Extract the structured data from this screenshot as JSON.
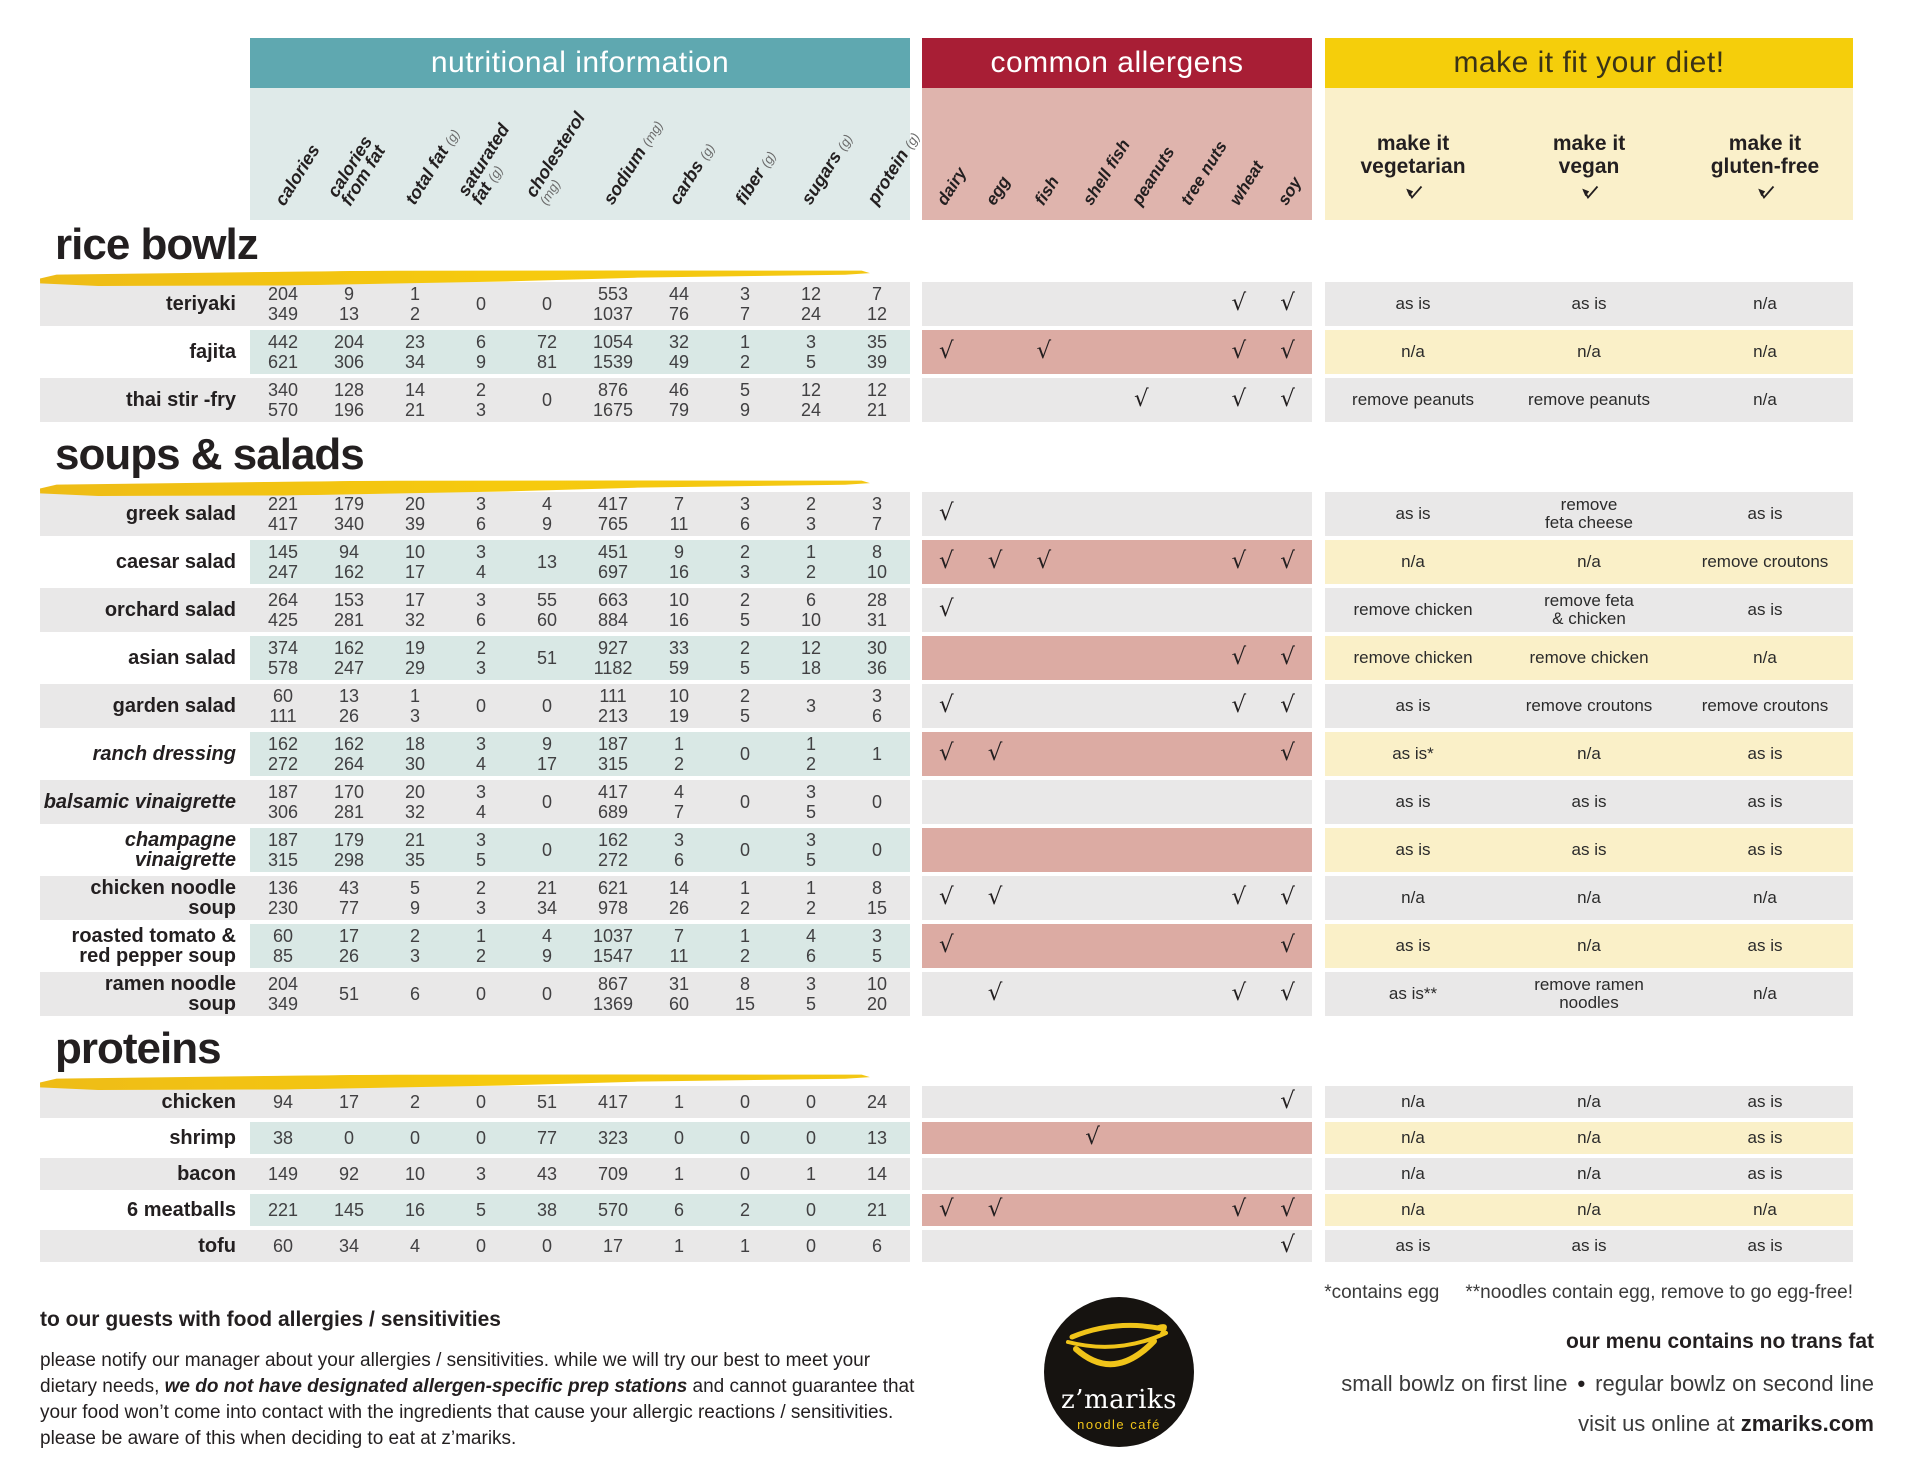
{
  "colors": {
    "teal": "#5fa8b0",
    "crimson": "#a81e35",
    "gold": "#f5ce0b",
    "bandTeal": "#dfeae9",
    "bandPink": "#dfb4ad",
    "bandYellow": "#faf0ca",
    "rowGray": "#e9e8e8",
    "rowTeal": "#d9e8e5",
    "rowPink": "#dcaba3",
    "rowYellow": "#faf0c8"
  },
  "header": {
    "nutrition_title": "nutritional information",
    "allergens_title": "common allergens",
    "diet_title": "make it fit your diet!"
  },
  "columns": {
    "nutrition": [
      {
        "text": "calories",
        "unit": ""
      },
      {
        "text": "calories\nfrom fat",
        "unit": ""
      },
      {
        "text": "total fat",
        "unit": "(g)"
      },
      {
        "text": "saturated\nfat",
        "unit": "(g)"
      },
      {
        "text": "cholesterol",
        "unit": "(mg)",
        "unit_below": true
      },
      {
        "text": "sodium",
        "unit": "(mg)"
      },
      {
        "text": "carbs",
        "unit": "(g)"
      },
      {
        "text": "fiber",
        "unit": "(g)"
      },
      {
        "text": "sugars",
        "unit": "(g)"
      },
      {
        "text": "protein",
        "unit": "(g)"
      }
    ],
    "allergens": [
      "dairy",
      "egg",
      "fish",
      "shell fish",
      "peanuts",
      "tree nuts",
      "wheat",
      "soy"
    ],
    "diet": [
      "make it\nvegetarian",
      "make it\nvegan",
      "make it\ngluten-free"
    ]
  },
  "sections": [
    {
      "title": "rice bowlz",
      "single_line": false,
      "rows": [
        {
          "name": "teriyaki",
          "italic": false,
          "values": [
            "204\n349",
            "9\n13",
            "1\n2",
            "0",
            "0",
            "553\n1037",
            "44\n76",
            "3\n7",
            "12\n24",
            "7\n12"
          ],
          "allergens": [
            0,
            0,
            0,
            0,
            0,
            0,
            1,
            1
          ],
          "diet": [
            "as is",
            "as is",
            "n/a"
          ]
        },
        {
          "name": "fajita",
          "italic": false,
          "values": [
            "442\n621",
            "204\n306",
            "23\n34",
            "6\n9",
            "72\n81",
            "1054\n1539",
            "32\n49",
            "1\n2",
            "3\n5",
            "35\n39"
          ],
          "allergens": [
            1,
            0,
            1,
            0,
            0,
            0,
            1,
            1
          ],
          "diet": [
            "n/a",
            "n/a",
            "n/a"
          ]
        },
        {
          "name": "thai stir -fry",
          "italic": false,
          "values": [
            "340\n570",
            "128\n196",
            "14\n21",
            "2\n3",
            "0",
            "876\n1675",
            "46\n79",
            "5\n9",
            "12\n24",
            "12\n21"
          ],
          "allergens": [
            0,
            0,
            0,
            0,
            1,
            0,
            1,
            1
          ],
          "diet": [
            "remove peanuts",
            "remove peanuts",
            "n/a"
          ]
        }
      ]
    },
    {
      "title": "soups & salads",
      "single_line": false,
      "rows": [
        {
          "name": "greek salad",
          "italic": false,
          "values": [
            "221\n417",
            "179\n340",
            "20\n39",
            "3\n6",
            "4\n9",
            "417\n765",
            "7\n11",
            "3\n6",
            "2\n3",
            "3\n7"
          ],
          "allergens": [
            1,
            0,
            0,
            0,
            0,
            0,
            0,
            0
          ],
          "diet": [
            "as is",
            "remove\nfeta cheese",
            "as is"
          ]
        },
        {
          "name": "caesar salad",
          "italic": false,
          "values": [
            "145\n247",
            "94\n162",
            "10\n17",
            "3\n4",
            "13",
            "451\n697",
            "9\n16",
            "2\n3",
            "1\n2",
            "8\n10"
          ],
          "allergens": [
            1,
            1,
            1,
            0,
            0,
            0,
            1,
            1
          ],
          "diet": [
            "n/a",
            "n/a",
            "remove croutons"
          ]
        },
        {
          "name": "orchard salad",
          "italic": false,
          "values": [
            "264\n425",
            "153\n281",
            "17\n32",
            "3\n6",
            "55\n60",
            "663\n884",
            "10\n16",
            "2\n5",
            "6\n10",
            "28\n31"
          ],
          "allergens": [
            1,
            0,
            0,
            0,
            0,
            0,
            0,
            0
          ],
          "diet": [
            "remove chicken",
            "remove feta\n& chicken",
            "as is"
          ]
        },
        {
          "name": "asian salad",
          "italic": false,
          "values": [
            "374\n578",
            "162\n247",
            "19\n29",
            "2\n3",
            "51",
            "927\n1182",
            "33\n59",
            "2\n5",
            "12\n18",
            "30\n36"
          ],
          "allergens": [
            0,
            0,
            0,
            0,
            0,
            0,
            1,
            1
          ],
          "diet": [
            "remove chicken",
            "remove chicken",
            "n/a"
          ]
        },
        {
          "name": "garden salad",
          "italic": false,
          "values": [
            "60\n111",
            "13\n26",
            "1\n3",
            "0",
            "0",
            "111\n213",
            "10\n19",
            "2\n5",
            "3",
            "3\n6"
          ],
          "allergens": [
            1,
            0,
            0,
            0,
            0,
            0,
            1,
            1
          ],
          "diet": [
            "as is",
            "remove croutons",
            "remove croutons"
          ]
        },
        {
          "name": "ranch dressing",
          "italic": true,
          "values": [
            "162\n272",
            "162\n264",
            "18\n30",
            "3\n4",
            "9\n17",
            "187\n315",
            "1\n2",
            "0",
            "1\n2",
            "1"
          ],
          "allergens": [
            1,
            1,
            0,
            0,
            0,
            0,
            0,
            1
          ],
          "diet": [
            "as is*",
            "n/a",
            "as is"
          ]
        },
        {
          "name": "balsamic vinaigrette",
          "italic": true,
          "values": [
            "187\n306",
            "170\n281",
            "20\n32",
            "3\n4",
            "0",
            "417\n689",
            "4\n7",
            "0",
            "3\n5",
            "0"
          ],
          "allergens": [
            0,
            0,
            0,
            0,
            0,
            0,
            0,
            0
          ],
          "diet": [
            "as is",
            "as is",
            "as is"
          ]
        },
        {
          "name": "champagne vinaigrette",
          "italic": true,
          "values": [
            "187\n315",
            "179\n298",
            "21\n35",
            "3\n5",
            "0",
            "162\n272",
            "3\n6",
            "0",
            "3\n5",
            "0"
          ],
          "allergens": [
            0,
            0,
            0,
            0,
            0,
            0,
            0,
            0
          ],
          "diet": [
            "as is",
            "as is",
            "as is"
          ]
        },
        {
          "name": "chicken noodle\nsoup",
          "italic": false,
          "values": [
            "136\n230",
            "43\n77",
            "5\n9",
            "2\n3",
            "21\n34",
            "621\n978",
            "14\n26",
            "1\n2",
            "1\n2",
            "8\n15"
          ],
          "allergens": [
            1,
            1,
            0,
            0,
            0,
            0,
            1,
            1
          ],
          "diet": [
            "n/a",
            "n/a",
            "n/a"
          ]
        },
        {
          "name": "roasted tomato &\nred pepper soup",
          "italic": false,
          "values": [
            "60\n85",
            "17\n26",
            "2\n3",
            "1\n2",
            "4\n9",
            "1037\n1547",
            "7\n11",
            "1\n2",
            "4\n6",
            "3\n5"
          ],
          "allergens": [
            1,
            0,
            0,
            0,
            0,
            0,
            0,
            1
          ],
          "diet": [
            "as is",
            "n/a",
            "as is"
          ]
        },
        {
          "name": "ramen noodle\nsoup",
          "italic": false,
          "values": [
            "204\n349",
            "51",
            "6",
            "0",
            "0",
            "867\n1369",
            "31\n60",
            "8\n15",
            "3\n5",
            "10\n20"
          ],
          "allergens": [
            0,
            1,
            0,
            0,
            0,
            0,
            1,
            1
          ],
          "diet": [
            "as is**",
            "remove ramen\nnoodles",
            "n/a"
          ]
        }
      ]
    },
    {
      "title": "proteins",
      "single_line": true,
      "rows": [
        {
          "name": "chicken",
          "italic": false,
          "values": [
            "94",
            "17",
            "2",
            "0",
            "51",
            "417",
            "1",
            "0",
            "0",
            "24"
          ],
          "allergens": [
            0,
            0,
            0,
            0,
            0,
            0,
            0,
            1
          ],
          "diet": [
            "n/a",
            "n/a",
            "as is"
          ]
        },
        {
          "name": "shrimp",
          "italic": false,
          "values": [
            "38",
            "0",
            "0",
            "0",
            "77",
            "323",
            "0",
            "0",
            "0",
            "13"
          ],
          "allergens": [
            0,
            0,
            0,
            1,
            0,
            0,
            0,
            0
          ],
          "diet": [
            "n/a",
            "n/a",
            "as is"
          ]
        },
        {
          "name": "bacon",
          "italic": false,
          "values": [
            "149",
            "92",
            "10",
            "3",
            "43",
            "709",
            "1",
            "0",
            "1",
            "14"
          ],
          "allergens": [
            0,
            0,
            0,
            0,
            0,
            0,
            0,
            0
          ],
          "diet": [
            "n/a",
            "n/a",
            "as is"
          ]
        },
        {
          "name": "6 meatballs",
          "italic": false,
          "values": [
            "221",
            "145",
            "16",
            "5",
            "38",
            "570",
            "6",
            "2",
            "0",
            "21"
          ],
          "allergens": [
            1,
            1,
            0,
            0,
            0,
            0,
            1,
            1
          ],
          "diet": [
            "n/a",
            "n/a",
            "n/a"
          ]
        },
        {
          "name": "tofu",
          "italic": false,
          "values": [
            "60",
            "34",
            "4",
            "0",
            "0",
            "17",
            "1",
            "1",
            "0",
            "6"
          ],
          "allergens": [
            0,
            0,
            0,
            0,
            0,
            0,
            0,
            1
          ],
          "diet": [
            "as is",
            "as is",
            "as is"
          ]
        }
      ]
    }
  ],
  "checkmark": "√",
  "footnotes": {
    "note1": "*contains egg",
    "note2": "**noodles contain egg, remove to go egg-free!"
  },
  "footer": {
    "allergy_heading": "to our guests with food allergies / sensitivities",
    "allergy_text_1": "please notify our manager about your allergies / sensitivities. while we will try our best to meet your dietary needs, ",
    "allergy_text_bold": "we do not have designated allergen-specific prep stations",
    "allergy_text_2": " and cannot guarantee that your food won’t come into contact with the ingredients that cause your allergic reactions / sensitivities. please be aware of this when deciding to eat at z’mariks.",
    "no_trans_fat": "our menu contains no trans fat",
    "bowlz_note_left": "small bowlz on first line",
    "bowlz_note_bullet": "•",
    "bowlz_note_right": "regular bowlz on second line",
    "visit_prefix": "visit us online at ",
    "visit_site": "zmariks.com",
    "logo_name": "z’mariks",
    "logo_sub": "noodle café"
  }
}
